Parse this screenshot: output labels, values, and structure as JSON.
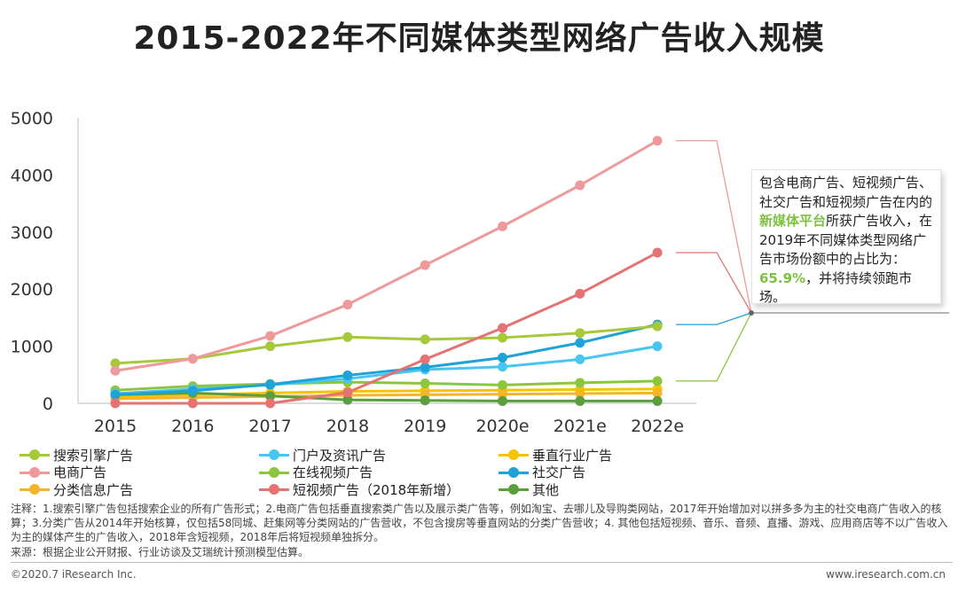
{
  "title": "2015-2022年不同媒体类型网络广告收入规模",
  "chart_data": {
    "type": "line",
    "title": "2015-2022年不同媒体类型网络广告收入规模",
    "categories": [
      "2015",
      "2016",
      "2017",
      "2018",
      "2019",
      "2020e",
      "2021e",
      "2022e"
    ],
    "ylim": [
      0,
      5000
    ],
    "yticks": [
      "0",
      "1000",
      "2000",
      "3000",
      "4000",
      "5000"
    ],
    "grid": false,
    "legend_position": "bottom",
    "series": [
      {
        "name": "搜索引擎广告",
        "color": "#a5c93a",
        "values": [
          700,
          780,
          1000,
          1160,
          1120,
          1150,
          1230,
          1350
        ]
      },
      {
        "name": "门户及资讯广告",
        "color": "#48c6f0",
        "values": [
          170,
          250,
          320,
          430,
          590,
          640,
          770,
          1000
        ]
      },
      {
        "name": "垂直行业广告",
        "color": "#f5c400",
        "values": [
          120,
          150,
          180,
          210,
          220,
          230,
          240,
          250
        ]
      },
      {
        "name": "电商广告",
        "color": "#ef9a9a",
        "values": [
          570,
          780,
          1180,
          1730,
          2420,
          3100,
          3820,
          4600
        ]
      },
      {
        "name": "在线视频广告",
        "color": "#8cc63f",
        "values": [
          230,
          300,
          340,
          370,
          350,
          320,
          360,
          390
        ]
      },
      {
        "name": "社交广告",
        "color": "#1fa2d6",
        "values": [
          150,
          220,
          330,
          490,
          630,
          800,
          1060,
          1380
        ]
      },
      {
        "name": "分类信息广告",
        "color": "#f5b52b",
        "values": [
          80,
          100,
          120,
          140,
          150,
          160,
          170,
          180
        ]
      },
      {
        "name": "短视频广告（2018年新增）",
        "color": "#e57373",
        "values": [
          0,
          0,
          0,
          190,
          770,
          1320,
          1920,
          2640
        ]
      },
      {
        "name": "其他",
        "color": "#5a9e3d",
        "values": [
          150,
          180,
          130,
          60,
          50,
          40,
          40,
          40
        ]
      }
    ]
  },
  "callout": {
    "text_before": "包含电商广告、短视频广告、社交广告和短视频广告在内的",
    "highlight1": "新媒体平台",
    "text_middle": "所获广告收入，在2019年不同媒体类型网络广告市场份额中的占比为：",
    "highlight2": "65.9%",
    "text_after": "，并将持续领跑市场。"
  },
  "note": "注释：1.搜索引擎广告包括搜索企业的所有广告形式；2.电商广告包括垂直搜索类广告以及展示类广告等，例如淘宝、去哪儿及导购类网站，2017年开始增加对以拼多多为主的社交电商广告收入的核算；3.分类广告从2014年开始核算，仅包括58同城、赶集网等分类网站的广告营收，不包含搜房等垂直网站的分类广告营收；4. 其他包括短视频、音乐、音频、直播、游戏、应用商店等不以广告收入为主的媒体产生的广告收入，2018年含短视频，2018年后将短视频单独拆分。",
  "source": "来源：根据企业公开财报、行业访谈及艾瑞统计预测模型估算。",
  "copyright": "©2020.7 iResearch Inc.",
  "site": "www.iresearch.com.cn"
}
